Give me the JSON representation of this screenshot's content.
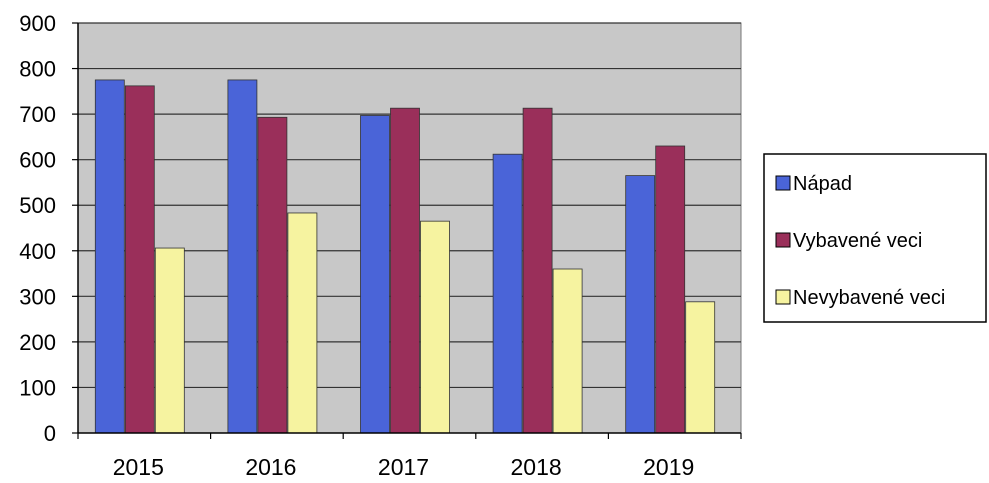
{
  "chart_data": {
    "type": "bar",
    "title": "",
    "xlabel": "",
    "ylabel": "",
    "categories": [
      "2015",
      "2016",
      "2017",
      "2018",
      "2019"
    ],
    "ylim": [
      0,
      900
    ],
    "yticks": [
      0,
      100,
      200,
      300,
      400,
      500,
      600,
      700,
      800,
      900
    ],
    "grid": true,
    "legend_position": "right",
    "plot_background": "#c8c8c8",
    "series": [
      {
        "name": "Nápad",
        "color": "#4a64d8",
        "values": [
          775,
          775,
          697,
          612,
          565
        ]
      },
      {
        "name": "Vybavené veci",
        "color": "#9a2f5a",
        "values": [
          762,
          693,
          713,
          713,
          630
        ]
      },
      {
        "name": "Nevybavené veci",
        "color": "#f6f3a0",
        "values": [
          406,
          483,
          465,
          360,
          288
        ]
      }
    ]
  }
}
